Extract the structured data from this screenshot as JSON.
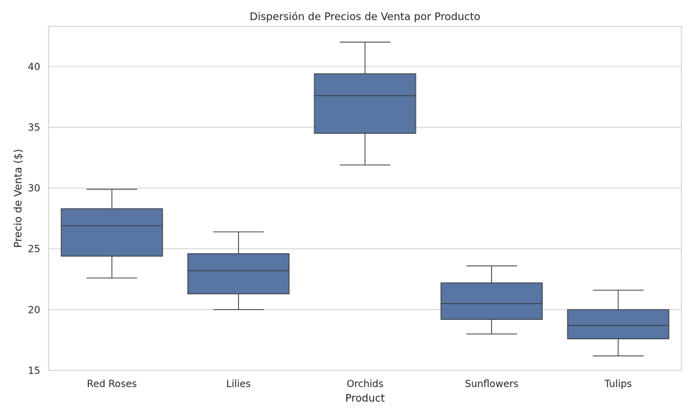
{
  "chart_data": {
    "type": "box",
    "title": "Dispersión de Precios de Venta por Producto",
    "xlabel": "Product",
    "ylabel": "Precio de Venta ($)",
    "ylim": [
      15,
      43.3
    ],
    "yticks": [
      15,
      20,
      25,
      30,
      35,
      40
    ],
    "grid": true,
    "box_color": "#5875a4",
    "line_color": "#3d3d3d",
    "categories": [
      "Red Roses",
      "Lilies",
      "Orchids",
      "Sunflowers",
      "Tulips"
    ],
    "boxes": [
      {
        "category": "Red Roses",
        "min": 22.6,
        "q1": 24.4,
        "median": 26.9,
        "q3": 28.3,
        "max": 29.9
      },
      {
        "category": "Lilies",
        "min": 20.0,
        "q1": 21.3,
        "median": 23.2,
        "q3": 24.6,
        "max": 26.4
      },
      {
        "category": "Orchids",
        "min": 31.9,
        "q1": 34.5,
        "median": 37.6,
        "q3": 39.4,
        "max": 42.0
      },
      {
        "category": "Sunflowers",
        "min": 18.0,
        "q1": 19.2,
        "median": 20.5,
        "q3": 22.2,
        "max": 23.6
      },
      {
        "category": "Tulips",
        "min": 16.2,
        "q1": 17.6,
        "median": 18.7,
        "q3": 20.0,
        "max": 21.6
      }
    ]
  }
}
